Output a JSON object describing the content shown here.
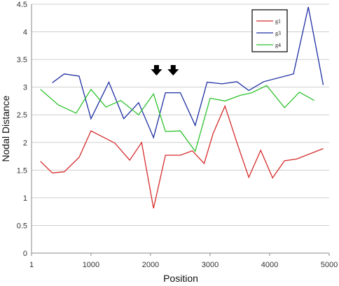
{
  "chart_data": {
    "type": "line",
    "title": "",
    "xlabel": "Position",
    "ylabel": "Nodal Distance",
    "xlim": [
      1,
      5000
    ],
    "ylim": [
      0,
      4.5
    ],
    "x_ticks": [
      1,
      1000,
      2000,
      3000,
      4000,
      5000
    ],
    "x_tick_labels": [
      "1",
      "1000",
      "2000",
      "3000",
      "4000",
      "5000"
    ],
    "y_ticks": [
      0,
      0.5,
      1,
      1.5,
      2,
      2.5,
      3,
      3.5,
      4,
      4.5
    ],
    "y_tick_labels": [
      "0",
      "0.5",
      "1",
      "1.5",
      "2",
      "2.5",
      "3",
      "3.5",
      "4",
      "4.5"
    ],
    "grid": "horizontal",
    "legend_position": "top-right",
    "series": [
      {
        "name": "g1",
        "color": "#d62b2b",
        "x": [
          150,
          350,
          550,
          800,
          1000,
          1400,
          1650,
          1850,
          2050,
          2250,
          2500,
          2700,
          2900,
          3050,
          3250,
          3450,
          3650,
          3850,
          4050,
          4250,
          4450,
          4900
        ],
        "y": [
          1.66,
          1.45,
          1.47,
          1.73,
          2.21,
          1.99,
          1.68,
          2.0,
          0.81,
          1.77,
          1.77,
          1.85,
          1.62,
          2.16,
          2.66,
          2.0,
          1.37,
          1.86,
          1.36,
          1.67,
          1.7,
          1.89
        ]
      },
      {
        "name": "g3",
        "color": "#1f2fa3",
        "x": [
          350,
          550,
          800,
          1000,
          1300,
          1550,
          1800,
          2050,
          2250,
          2500,
          2750,
          2950,
          3200,
          3450,
          3650,
          3900,
          4400,
          4650,
          4900
        ],
        "y": [
          3.08,
          3.24,
          3.2,
          2.43,
          3.09,
          2.43,
          2.72,
          2.09,
          2.9,
          2.9,
          2.31,
          3.09,
          3.06,
          3.1,
          2.94,
          3.1,
          3.24,
          4.45,
          3.04
        ]
      },
      {
        "name": "g4",
        "color": "#2dc22d",
        "x": [
          150,
          450,
          750,
          1000,
          1250,
          1500,
          1800,
          2050,
          2250,
          2500,
          2750,
          3000,
          3250,
          3500,
          3700,
          3950,
          4250,
          4500,
          4750
        ],
        "y": [
          2.96,
          2.68,
          2.53,
          2.96,
          2.64,
          2.76,
          2.5,
          2.88,
          2.2,
          2.21,
          1.84,
          2.8,
          2.75,
          2.85,
          2.9,
          3.03,
          2.63,
          2.91,
          2.76
        ]
      }
    ],
    "annotations": [
      {
        "type": "arrow-down",
        "x": 2100,
        "y": 3.4,
        "color": "#000000"
      },
      {
        "type": "arrow-down",
        "x": 2380,
        "y": 3.4,
        "color": "#000000"
      }
    ]
  }
}
